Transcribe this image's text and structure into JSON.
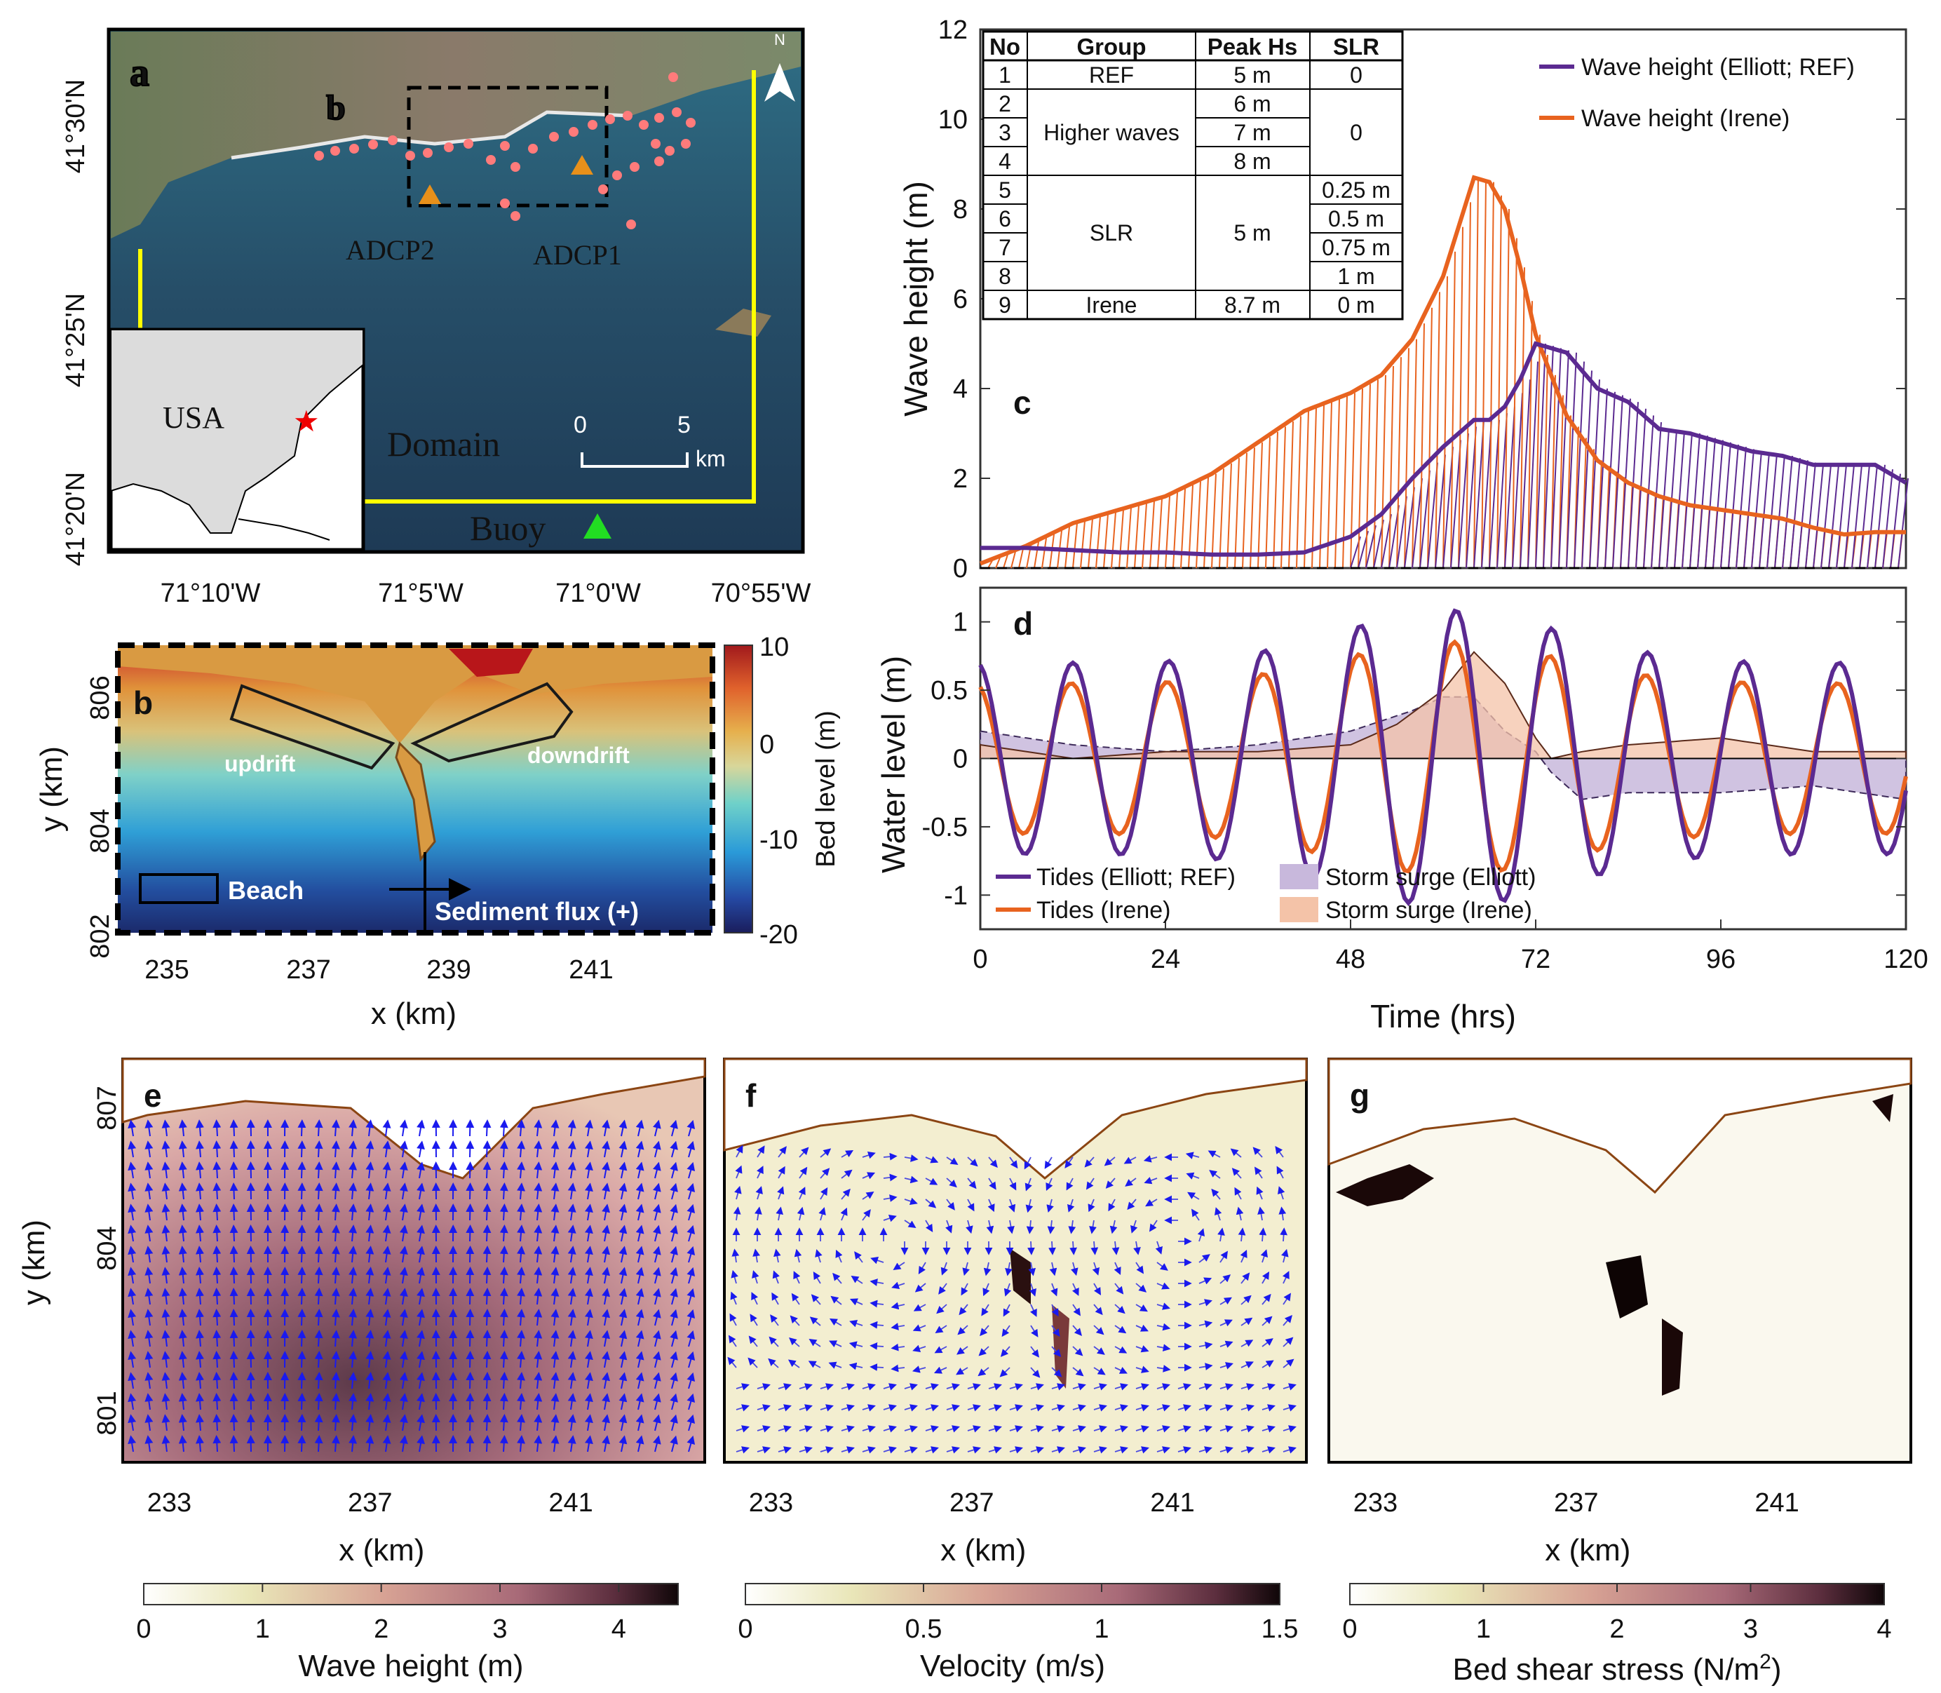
{
  "colors": {
    "elliott": "#5b2a91",
    "irene": "#e8631f",
    "elliott_fill": "#c8b8dc",
    "irene_fill": "#f4c3a8",
    "domain_box": "#ffff00",
    "adcp": "#e8901a",
    "buoy": "#22cc22",
    "survey_dots": "#ff7b7b"
  },
  "panel_a": {
    "label": "a",
    "inset_label": "b",
    "lat_ticks": [
      "41°30'N",
      "41°25'N",
      "41°20'N"
    ],
    "lon_ticks": [
      "71°10'W",
      "71°5'W",
      "71°0'W",
      "70°55'W"
    ],
    "usa_label": "USA",
    "domain_label": "Domain",
    "buoy_label": "Buoy",
    "adcp1_label": "ADCP1",
    "adcp2_label": "ADCP2",
    "scale_ticks": [
      "0",
      "5"
    ],
    "scale_unit": "km",
    "north_label": "N"
  },
  "panel_b": {
    "label": "b",
    "ylabel": "y (km)",
    "xlabel": "x (km)",
    "x_ticks": [
      "235",
      "237",
      "239",
      "241"
    ],
    "y_ticks": [
      "806",
      "804",
      "802"
    ],
    "updrift_label": "updrift",
    "downdrift_label": "downdrift",
    "beach_label": "Beach",
    "flux_label": "Sediment flux (+)",
    "colorbar_label": "Bed level (m)",
    "colorbar_ticks": [
      "10",
      "0",
      "-10",
      "-20"
    ]
  },
  "table": {
    "headers": [
      "No",
      "Group",
      "Peak Hs",
      "SLR"
    ],
    "numbers": [
      "1",
      "2",
      "3",
      "4",
      "5",
      "6",
      "7",
      "8",
      "9"
    ],
    "groups": [
      "REF",
      "Higher waves",
      "SLR",
      "Irene"
    ],
    "peak_hs": [
      "5 m",
      "6 m",
      "7 m",
      "8 m",
      "5 m",
      "8.7 m"
    ],
    "slr": [
      "0",
      "0",
      "0.25 m",
      "0.5 m",
      "0.75 m",
      "1 m",
      "0 m"
    ]
  },
  "panel_c": {
    "label": "c",
    "ylabel": "Wave height (m)",
    "legend": [
      "Wave height (Elliott; REF)",
      "Wave height (Irene)"
    ]
  },
  "panel_d": {
    "label": "d",
    "ylabel": "Water level (m)",
    "xlabel": "Time (hrs)",
    "legend": [
      "Tides (Elliott; REF)",
      "Tides (Irene)",
      "Storm surge (Elliott)",
      "Storm surge (Irene)"
    ]
  },
  "panel_e": {
    "label": "e",
    "colorbar_label": "Wave height (m)",
    "colorbar_ticks": [
      "0",
      "1",
      "2",
      "3",
      "4"
    ]
  },
  "panel_f": {
    "label": "f",
    "colorbar_label": "Velocity (m/s)",
    "colorbar_ticks": [
      "0",
      "0.5",
      "1",
      "1.5"
    ]
  },
  "panel_g": {
    "label": "g",
    "colorbar_label": "Bed shear stress (N/m",
    "colorbar_label_sup": "2",
    "colorbar_label_end": ")",
    "colorbar_ticks": [
      "0",
      "1",
      "2",
      "3",
      "4"
    ]
  },
  "bottom_panels": {
    "ylabel": "y (km)",
    "xlabel": "x (km)",
    "x_ticks": [
      "233",
      "237",
      "241"
    ],
    "y_ticks": [
      "807",
      "804",
      "801"
    ]
  },
  "chart_data": [
    {
      "type": "line",
      "panel": "c",
      "xlim": [
        0,
        120
      ],
      "ylim": [
        0,
        12
      ],
      "y_ticks": [
        0,
        2,
        4,
        6,
        8,
        10,
        12
      ],
      "x": [
        0,
        6,
        12,
        18,
        24,
        30,
        36,
        42,
        48,
        52,
        56,
        60,
        64,
        66,
        68,
        70,
        72,
        76,
        80,
        84,
        88,
        92,
        96,
        100,
        104,
        108,
        112,
        116,
        120
      ],
      "series": [
        {
          "name": "Wave height (Elliott; REF)",
          "values": [
            0.45,
            0.45,
            0.4,
            0.35,
            0.35,
            0.3,
            0.3,
            0.35,
            0.7,
            1.2,
            2.0,
            2.7,
            3.3,
            3.3,
            3.6,
            4.2,
            5.0,
            4.8,
            4.0,
            3.7,
            3.1,
            3.0,
            2.8,
            2.6,
            2.5,
            2.3,
            2.3,
            2.3,
            1.9
          ]
        },
        {
          "name": "Wave height (Irene)",
          "values": [
            0.1,
            0.5,
            1.0,
            1.3,
            1.6,
            2.1,
            2.8,
            3.5,
            3.9,
            4.3,
            5.1,
            6.5,
            8.7,
            8.6,
            8.0,
            6.7,
            5.2,
            3.4,
            2.4,
            1.9,
            1.6,
            1.4,
            1.3,
            1.2,
            1.1,
            0.9,
            0.75,
            0.8,
            0.8
          ]
        }
      ]
    },
    {
      "type": "line",
      "panel": "d",
      "xlim": [
        0,
        120
      ],
      "ylim": [
        -1.25,
        1.25
      ],
      "x_ticks": [
        0,
        24,
        48,
        72,
        96,
        120
      ],
      "y_ticks": [
        -1,
        -0.5,
        0,
        0.5,
        1
      ],
      "series": [
        {
          "name": "Tides (Elliott; REF)",
          "amplitude": 0.7,
          "growth": 0.55,
          "peak_hour": 61,
          "period_h": 12.42,
          "phase_h": 12
        },
        {
          "name": "Tides (Irene)",
          "amplitude": 0.55,
          "growth": 0.55,
          "peak_hour": 61,
          "period_h": 12.42,
          "phase_h": 11.8
        },
        {
          "name": "Storm surge (Elliott)",
          "x": [
            0,
            6,
            12,
            24,
            36,
            48,
            56,
            60,
            64,
            68,
            72,
            74,
            78,
            84,
            96,
            108,
            120
          ],
          "values": [
            0.2,
            0.15,
            0.1,
            0.05,
            0.1,
            0.2,
            0.35,
            0.45,
            0.45,
            0.2,
            0.05,
            -0.1,
            -0.3,
            -0.25,
            -0.25,
            -0.2,
            -0.3
          ]
        },
        {
          "name": "Storm surge (Irene)",
          "x": [
            0,
            6,
            12,
            24,
            36,
            48,
            54,
            60,
            64,
            68,
            72,
            74,
            78,
            84,
            96,
            108,
            120
          ],
          "values": [
            0.1,
            0.05,
            0.0,
            0.05,
            0.05,
            0.1,
            0.25,
            0.5,
            0.78,
            0.55,
            0.15,
            0.0,
            0.05,
            0.1,
            0.15,
            0.05,
            0.05
          ]
        }
      ]
    }
  ]
}
